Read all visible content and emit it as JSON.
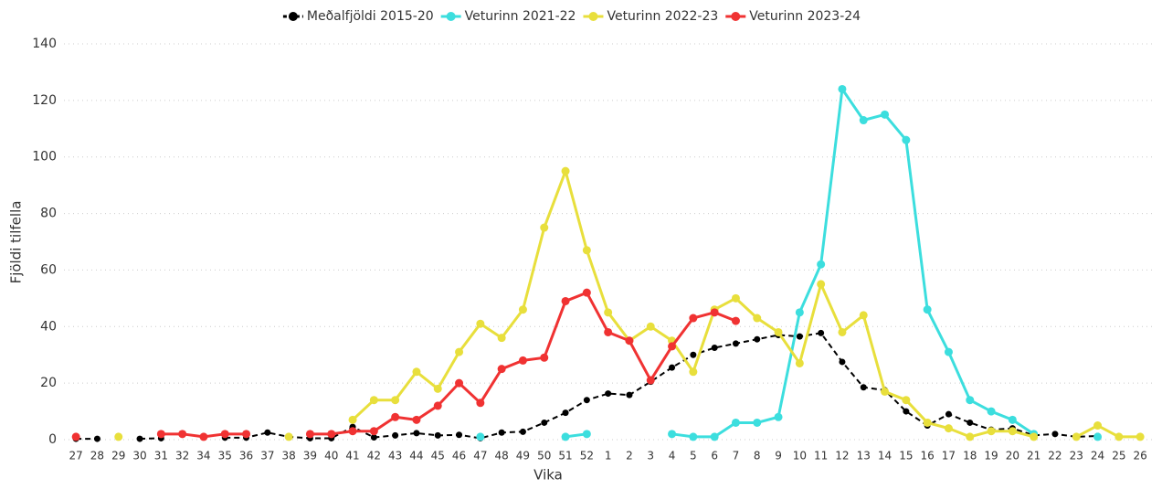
{
  "chart_data": {
    "type": "line",
    "xlabel": "Vika",
    "ylabel": "Fjöldi tilfella",
    "categories": [
      "27",
      "28",
      "29",
      "30",
      "31",
      "32",
      "34",
      "35",
      "36",
      "37",
      "38",
      "39",
      "40",
      "41",
      "42",
      "43",
      "44",
      "45",
      "46",
      "47",
      "48",
      "49",
      "50",
      "51",
      "52",
      "1",
      "2",
      "3",
      "4",
      "5",
      "6",
      "7",
      "8",
      "9",
      "10",
      "11",
      "12",
      "13",
      "14",
      "15",
      "16",
      "17",
      "18",
      "19",
      "20",
      "21",
      "22",
      "23",
      "24",
      "25",
      "26"
    ],
    "series": [
      {
        "name": "Meðalfjöldi 2015-20",
        "color": "#000000",
        "line_style": "dashed",
        "values": [
          0.3,
          0.3,
          null,
          0.3,
          0.5,
          null,
          null,
          0.7,
          0.7,
          2.5,
          1,
          0.5,
          0.5,
          4.5,
          0.8,
          1.5,
          2.3,
          1.5,
          1.7,
          0.5,
          2.5,
          2.8,
          6,
          9.5,
          14,
          16.3,
          15.8,
          20.5,
          25.5,
          30,
          32.5,
          34,
          35.5,
          37,
          36.5,
          37.7,
          27.5,
          18.5,
          17.5,
          10,
          5,
          9,
          6,
          3.5,
          4,
          1.5,
          2,
          1,
          1.3,
          null,
          null
        ]
      },
      {
        "name": "Veturinn 2021-22",
        "color": "#3cdede",
        "line_style": "solid",
        "values": [
          null,
          null,
          null,
          null,
          null,
          null,
          null,
          null,
          null,
          null,
          null,
          null,
          null,
          null,
          null,
          null,
          null,
          null,
          null,
          1,
          null,
          null,
          null,
          1,
          2,
          null,
          null,
          null,
          2,
          1,
          1,
          6,
          6,
          8,
          45,
          62,
          124,
          113,
          115,
          106,
          46,
          31,
          14,
          10,
          7,
          2,
          null,
          null,
          1,
          null,
          null
        ]
      },
      {
        "name": "Veturinn 2022-23",
        "color": "#e8df3c",
        "line_style": "solid",
        "values": [
          null,
          null,
          1,
          null,
          null,
          null,
          null,
          null,
          null,
          null,
          1,
          null,
          null,
          7,
          14,
          14,
          24,
          18,
          31,
          41,
          36,
          46,
          75,
          95,
          67,
          45,
          35,
          40,
          35,
          24,
          46,
          50,
          43,
          38,
          27,
          55,
          38,
          44,
          17,
          14,
          6,
          4,
          1,
          3,
          3,
          1,
          null,
          1,
          5,
          1,
          1
        ]
      },
      {
        "name": "Veturinn 2023-24",
        "color": "#f03232",
        "line_style": "solid",
        "values": [
          1,
          null,
          null,
          null,
          2,
          2,
          1,
          2,
          2,
          null,
          null,
          2,
          2,
          3,
          3,
          8,
          7,
          12,
          20,
          13,
          25,
          28,
          29,
          49,
          52,
          38,
          35,
          21,
          33,
          43,
          45,
          42,
          null,
          null,
          null,
          null,
          null,
          null,
          null,
          null,
          null,
          null,
          null,
          null,
          null,
          null,
          null,
          null,
          null,
          null,
          null
        ]
      }
    ],
    "ylim": [
      0,
      140
    ],
    "yticks": [
      0,
      20,
      40,
      60,
      80,
      100,
      120,
      140
    ],
    "grid": true,
    "legend": "top"
  }
}
